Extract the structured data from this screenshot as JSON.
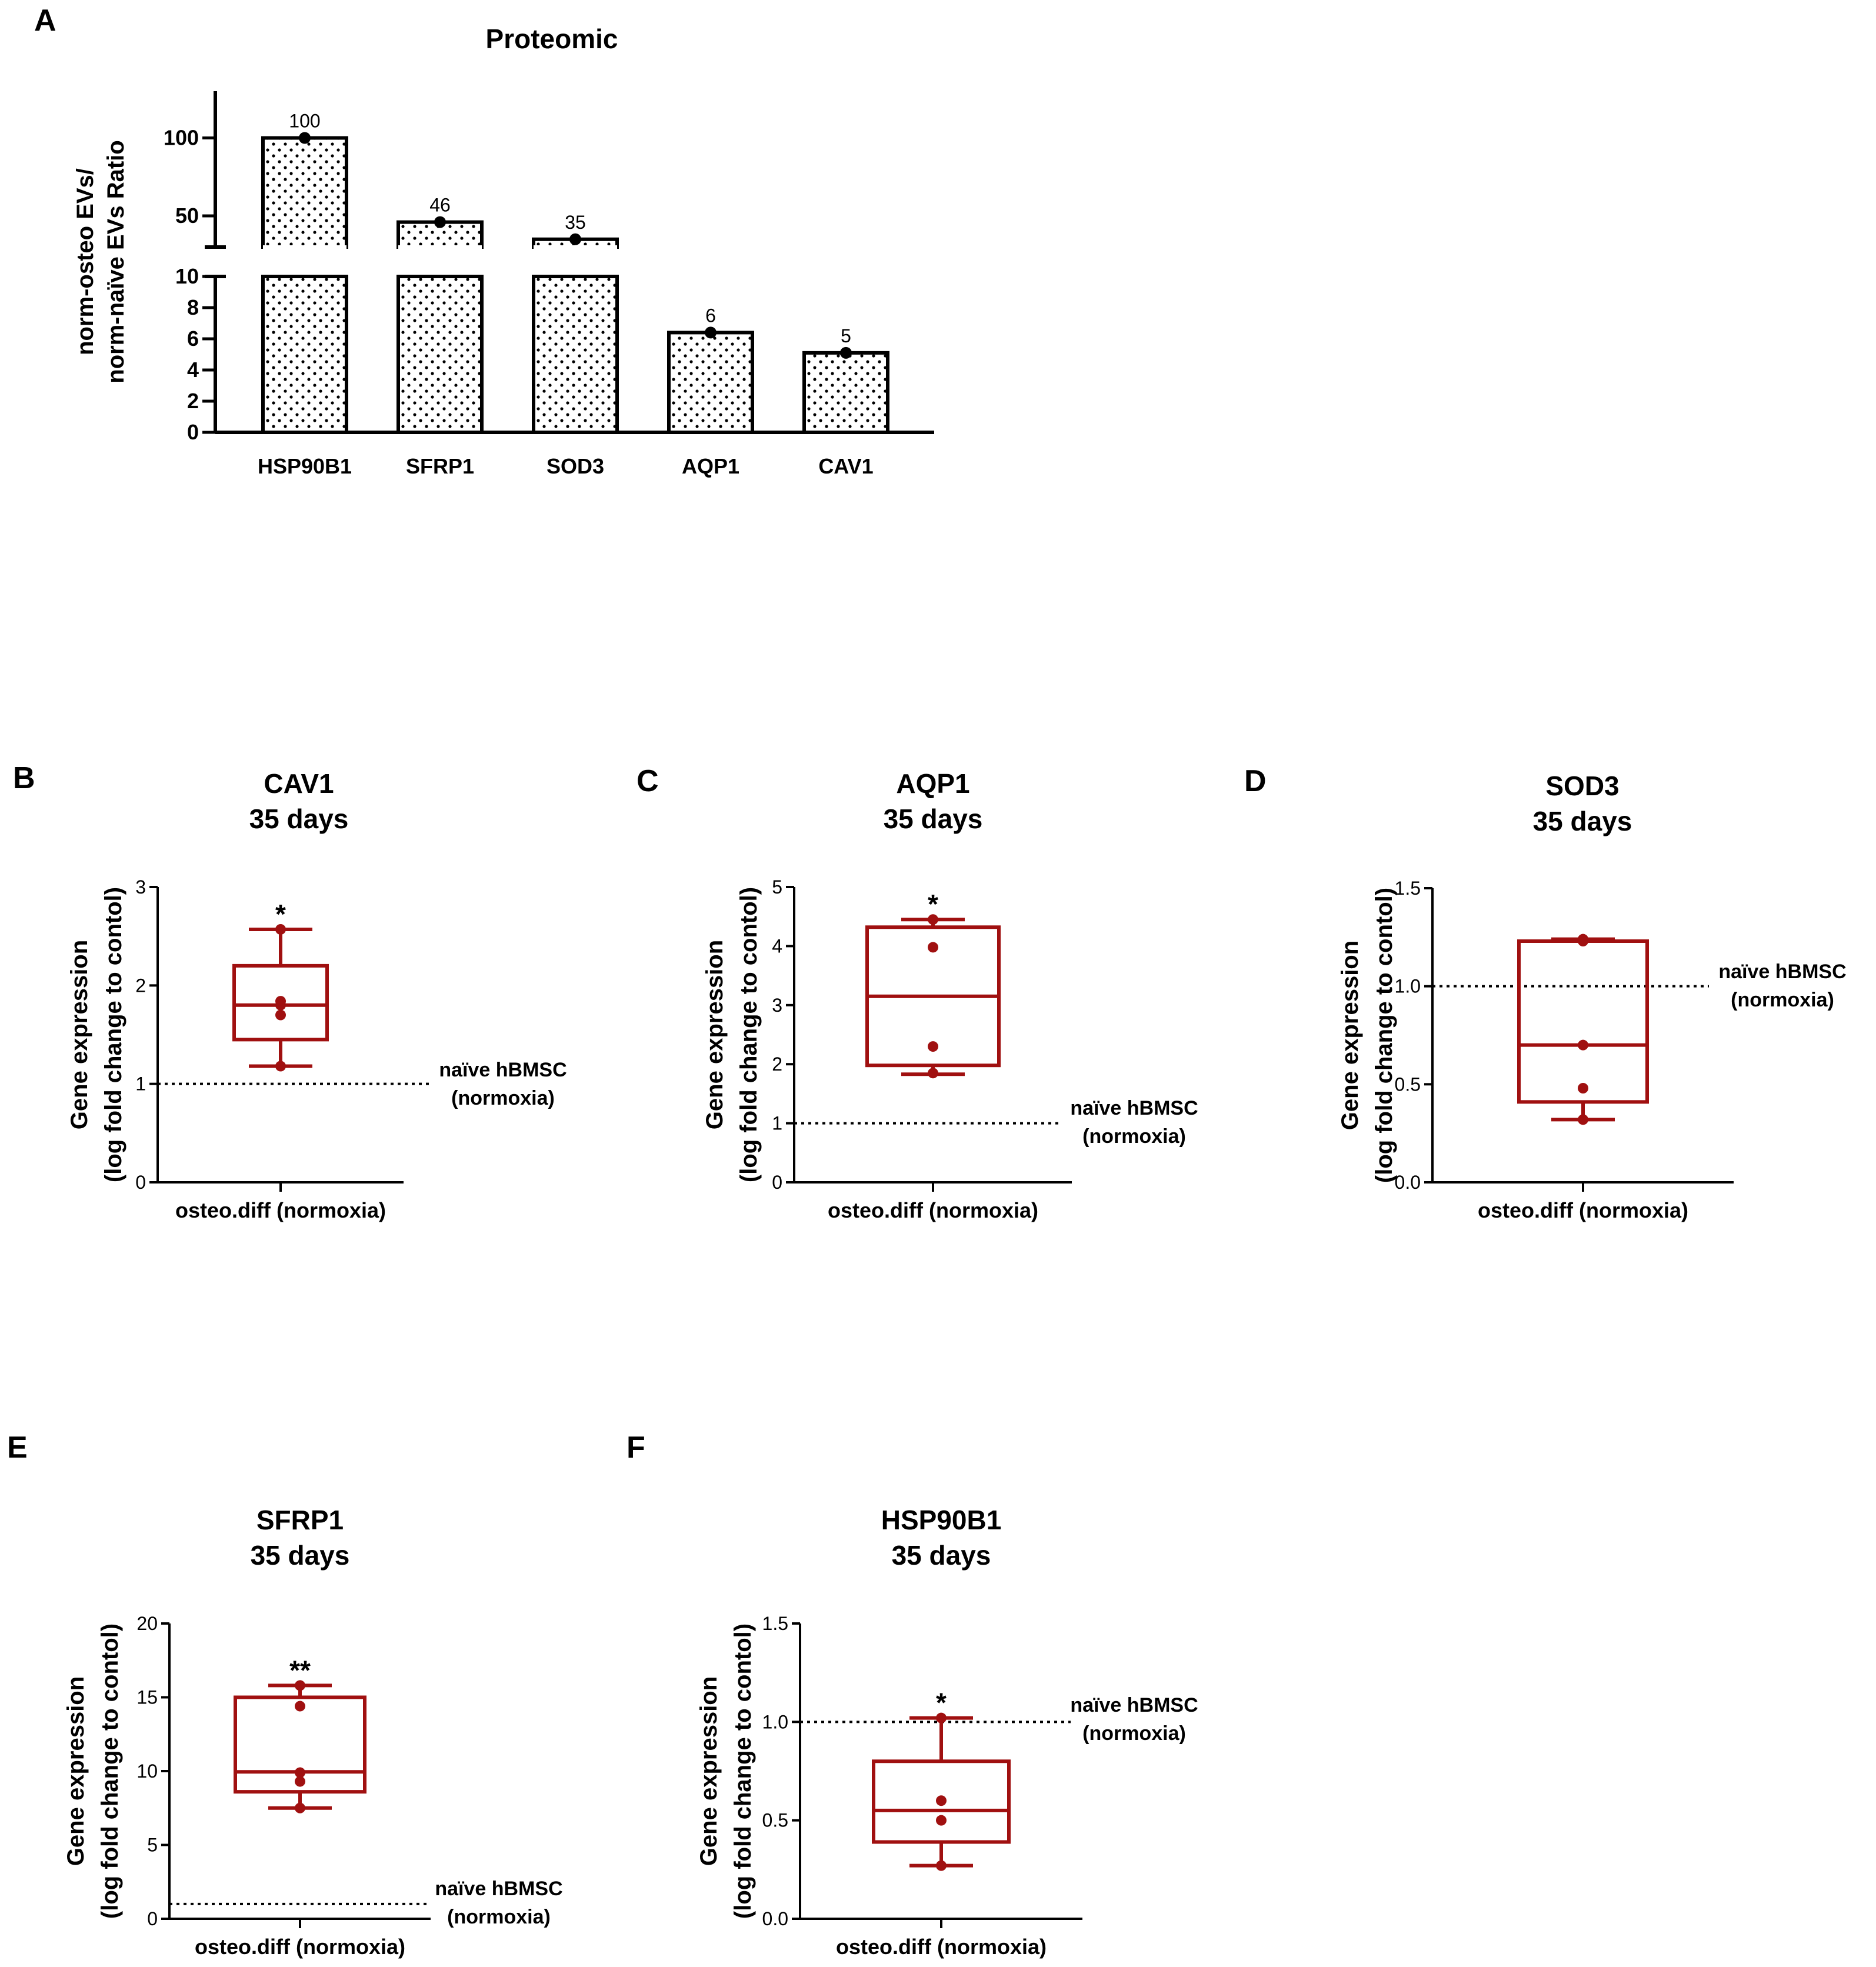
{
  "colors": {
    "box": "#a01010",
    "ink": "#000000"
  },
  "chart_data": [
    {
      "panel": "A",
      "type": "bar",
      "title": "Proteomic",
      "ylabel_lines": [
        "norm-osteo EVs/",
        "norm-naïve EVs Ratio"
      ],
      "categories": [
        "HSP90B1",
        "SFRP1",
        "SOD3",
        "AQP1",
        "CAV1"
      ],
      "values": [
        100,
        46,
        35,
        6.4,
        5.1
      ],
      "value_labels": [
        "100",
        "46",
        "35",
        "6",
        "5"
      ],
      "y_axis_break": true,
      "lower_segment": {
        "ylim": [
          0,
          10
        ],
        "ticks": [
          "0",
          "2",
          "4",
          "6",
          "8",
          "10"
        ]
      },
      "upper_segment": {
        "ylim": [
          30,
          130
        ],
        "ticks": [
          "50",
          "100"
        ]
      },
      "fill_pattern": "dots"
    },
    {
      "panel": "B",
      "type": "box",
      "title_lines": [
        "CAV1",
        "35 days"
      ],
      "ylabel_lines": [
        "Gene expression",
        "(log fold change to contol)"
      ],
      "category": "osteo.diff (normoxia)",
      "ylim": [
        0,
        3
      ],
      "ticks": [
        "0",
        "1",
        "2",
        "3"
      ],
      "min": 1.18,
      "q1": 1.45,
      "median": 1.8,
      "q3": 2.2,
      "max": 2.57,
      "points": [
        2.57,
        1.84,
        1.8,
        1.7,
        1.18
      ],
      "reference": {
        "value": 1,
        "label_lines": [
          "naïve hBMSC",
          "(normoxia)"
        ]
      },
      "significance": "*"
    },
    {
      "panel": "C",
      "type": "box",
      "title_lines": [
        "AQP1",
        "35 days"
      ],
      "ylabel_lines": [
        "Gene expression",
        "(log fold change to contol)"
      ],
      "category": "osteo.diff (normoxia)",
      "ylim": [
        0,
        5
      ],
      "ticks": [
        "0",
        "1",
        "2",
        "3",
        "4",
        "5"
      ],
      "min": 1.83,
      "q1": 1.98,
      "median": 3.15,
      "q3": 4.32,
      "max": 4.45,
      "points": [
        4.45,
        3.98,
        2.3,
        1.85
      ],
      "reference": {
        "value": 1,
        "label_lines": [
          "naïve hBMSC",
          "(normoxia)"
        ]
      },
      "significance": "*"
    },
    {
      "panel": "D",
      "type": "box",
      "title_lines": [
        "SOD3",
        "35 days"
      ],
      "ylabel_lines": [
        "Gene expression",
        "(log fold change to contol)"
      ],
      "category": "osteo.diff (normoxia)",
      "ylim": [
        0,
        1.5
      ],
      "ticks": [
        "0.0",
        "0.5",
        "1.0",
        "1.5"
      ],
      "min": 0.32,
      "q1": 0.41,
      "median": 0.7,
      "q3": 1.23,
      "max": 1.24,
      "points": [
        1.24,
        1.23,
        0.7,
        0.48,
        0.32
      ],
      "reference": {
        "value": 1,
        "label_lines": [
          "naïve hBMSC",
          "(normoxia)"
        ]
      },
      "significance": ""
    },
    {
      "panel": "E",
      "type": "box",
      "title_lines": [
        "SFRP1",
        "35 days"
      ],
      "ylabel_lines": [
        "Gene expression",
        "(log fold change to contol)"
      ],
      "category": "osteo.diff (normoxia)",
      "ylim": [
        0,
        20
      ],
      "ticks": [
        "0",
        "5",
        "10",
        "15",
        "20"
      ],
      "min": 7.5,
      "q1": 8.6,
      "median": 9.95,
      "q3": 15,
      "max": 15.8,
      "points": [
        15.8,
        14.4,
        9.9,
        9.3,
        7.5
      ],
      "reference": {
        "value": 1,
        "label_lines": [
          "naïve hBMSC",
          "(normoxia)"
        ]
      },
      "significance": "**"
    },
    {
      "panel": "F",
      "type": "box",
      "title_lines": [
        "HSP90B1",
        "35 days"
      ],
      "ylabel_lines": [
        "Gene expression",
        "(log fold change to contol)"
      ],
      "category": "osteo.diff (normoxia)",
      "ylim": [
        0,
        1.5
      ],
      "ticks": [
        "0.0",
        "0.5",
        "1.0",
        "1.5"
      ],
      "min": 0.27,
      "q1": 0.39,
      "median": 0.55,
      "q3": 0.8,
      "max": 1.02,
      "points": [
        1.02,
        0.6,
        0.5,
        0.27
      ],
      "reference": {
        "value": 1,
        "label_lines": [
          "naïve hBMSC",
          "(normoxia)"
        ]
      },
      "significance": "*"
    }
  ]
}
